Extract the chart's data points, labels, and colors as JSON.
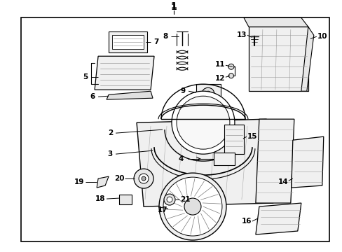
{
  "bg_color": "#ffffff",
  "border_color": "#000000",
  "line_color": "#000000",
  "text_color": "#000000",
  "fig_width": 4.89,
  "fig_height": 3.6,
  "dpi": 100
}
